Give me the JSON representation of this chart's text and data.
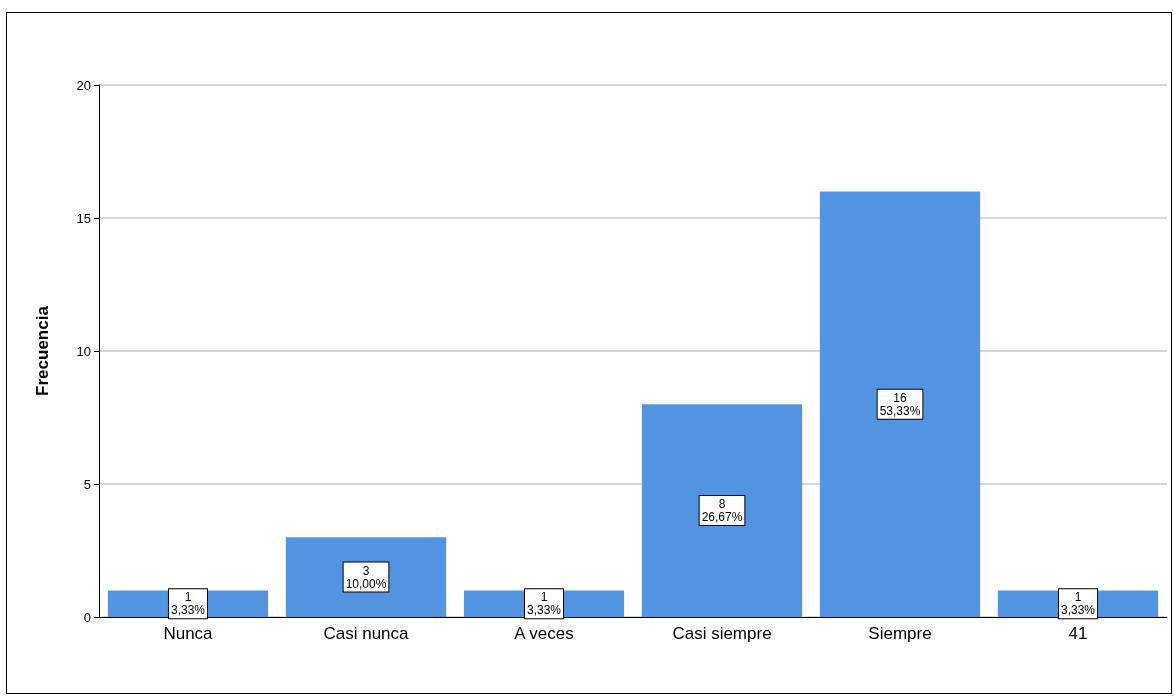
{
  "chart_data": {
    "type": "bar",
    "ylabel": "Frecuencia",
    "categories": [
      "Nunca",
      "Casi nunca",
      "A veces",
      "Casi siempre",
      "Siempre",
      "41"
    ],
    "values": [
      1,
      3,
      1,
      8,
      16,
      1
    ],
    "value_labels": [
      "1\n3,33%",
      "3\n10,00%",
      "1\n3,33%",
      "8\n26,67%",
      "16\n53,33%",
      "1\n3,33%"
    ],
    "color": "#5294e2",
    "ylim": [
      0,
      20
    ],
    "yticks": [
      0,
      5,
      10,
      15,
      20
    ],
    "grid": "y"
  }
}
